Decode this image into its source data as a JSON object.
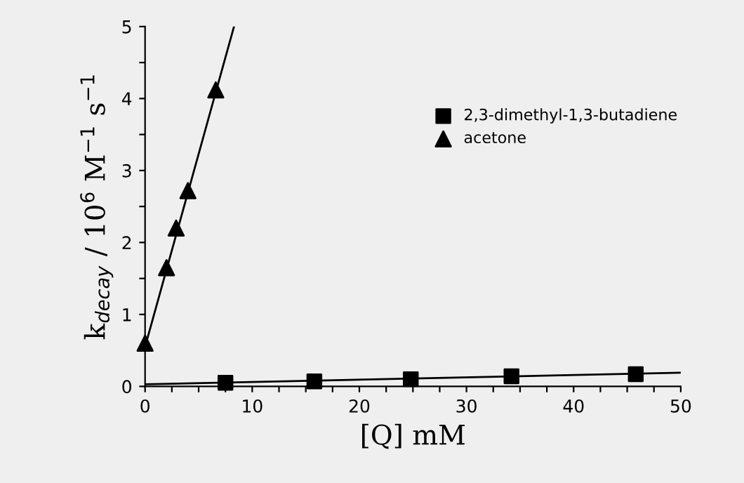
{
  "chart_data": {
    "type": "scatter",
    "xlabel": "[Q] mM",
    "ylabel": "k$_{decay}$ / 10$^{6}$ M$^{−1}$ s$^{−1}$",
    "xlim": [
      0,
      50
    ],
    "ylim": [
      0,
      5
    ],
    "xticks": [
      0,
      {
        "value": 2.5,
        "label": null
      },
      {
        "value": 5,
        "label": null
      },
      {
        "value": 7.5,
        "label": null
      },
      10,
      {
        "value": 12.5,
        "label": null
      },
      {
        "value": 15,
        "label": null
      },
      {
        "value": 17.5,
        "label": null
      },
      20,
      {
        "value": 22.5,
        "label": null
      },
      {
        "value": 25,
        "label": null
      },
      {
        "value": 27.5,
        "label": null
      },
      30,
      {
        "value": 32.5,
        "label": null
      },
      {
        "value": 35,
        "label": null
      },
      {
        "value": 37.5,
        "label": null
      },
      40,
      {
        "value": 42.5,
        "label": null
      },
      {
        "value": 45,
        "label": null
      },
      {
        "value": 47.5,
        "label": null
      },
      50
    ],
    "yticks": [
      0,
      {
        "value": 0.5,
        "label": null
      },
      1,
      {
        "value": 1.5,
        "label": null
      },
      2,
      {
        "value": 2.5,
        "label": null
      },
      3,
      {
        "value": 3.5,
        "label": null
      },
      4,
      {
        "value": 4.5,
        "label": null
      },
      5
    ],
    "grid": false,
    "legend": "right",
    "series": [
      {
        "name": "2,3-dimethyl-1,3-butadiene",
        "color": "#000000",
        "marker": "square",
        "x": [
          7.5,
          15.8,
          24.8,
          34.2,
          45.8
        ],
        "values": [
          0.05,
          0.07,
          0.1,
          0.14,
          0.17
        ]
      },
      {
        "name": "acetone",
        "color": "#000000",
        "marker": "triangle",
        "x": [
          0,
          2.0,
          2.9,
          4.0,
          6.6
        ],
        "values": [
          0.6,
          1.65,
          2.2,
          2.72,
          4.12
        ]
      },
      {
        "type": "line",
        "color": "#000000",
        "marker": "none",
        "x": [
          0,
          50
        ],
        "values": [
          0.03,
          0.19
        ]
      },
      {
        "type": "line",
        "color": "#000000",
        "marker": "none",
        "x": [
          0,
          8.3
        ],
        "values": [
          0.55,
          5.0
        ]
      }
    ]
  }
}
